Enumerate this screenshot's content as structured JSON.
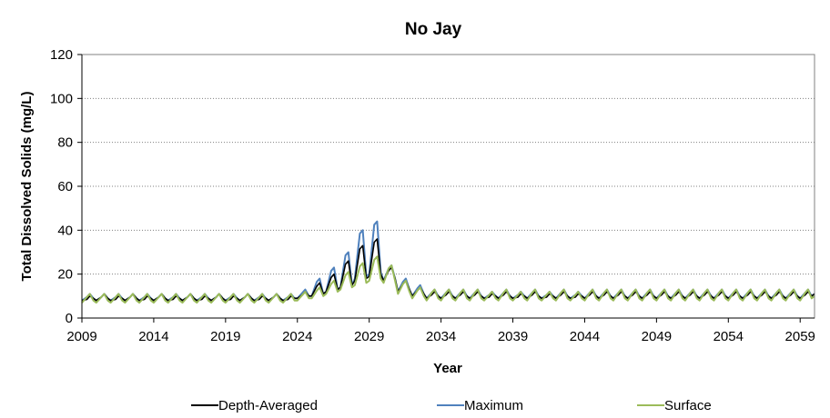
{
  "chart_data": {
    "type": "line",
    "title": "No Jay",
    "xlabel": "Year",
    "ylabel": "Total Dissolved Solids (mg/L)",
    "xlim": [
      2009,
      2060
    ],
    "ylim": [
      0,
      120
    ],
    "xticks": [
      2009,
      2014,
      2019,
      2024,
      2029,
      2034,
      2039,
      2044,
      2049,
      2054,
      2059
    ],
    "yticks": [
      0,
      20,
      40,
      60,
      80,
      100,
      120
    ],
    "grid": "horizontal dotted",
    "legend_position": "bottom",
    "annual_peaks_x": [
      2009.5,
      2010.5,
      2011.5,
      2012.5,
      2013.5,
      2014.5,
      2015.5,
      2016.5,
      2017.5,
      2018.5,
      2019.5,
      2020.5,
      2021.5,
      2022.5,
      2023.5,
      2024.5,
      2025.5,
      2026.5,
      2027.5,
      2028.5,
      2029.5,
      2030.5,
      2031.5,
      2032.5,
      2033.5,
      2034.5,
      2035.5,
      2036.5,
      2037.5,
      2038.5,
      2039.5,
      2040.5,
      2041.5,
      2042.5,
      2043.5,
      2044.5,
      2045.5,
      2046.5,
      2047.5,
      2048.5,
      2049.5,
      2050.5,
      2051.5,
      2052.5,
      2053.5,
      2054.5,
      2055.5,
      2056.5,
      2057.5,
      2058.5,
      2059.5
    ],
    "series": [
      {
        "name": "Depth-Averaged",
        "color": "#000000",
        "annual_peaks": [
          10,
          11,
          10,
          11,
          10,
          11,
          10,
          11,
          10,
          11,
          10,
          11,
          10,
          11,
          10,
          12,
          16,
          20,
          26,
          33,
          36,
          23,
          17,
          14,
          12,
          12,
          12,
          12,
          11,
          12,
          11,
          12,
          11,
          12,
          11,
          12,
          12,
          12,
          12,
          12,
          12,
          12,
          12,
          12,
          12,
          12,
          12,
          12,
          12,
          12,
          12
        ],
        "annual_lows": [
          8,
          8,
          8,
          8,
          8,
          8,
          8,
          8,
          8,
          8,
          8,
          8,
          8,
          8,
          8,
          9,
          10,
          12,
          14,
          17,
          19,
          17,
          12,
          10,
          9,
          9,
          9,
          9,
          9,
          9,
          9,
          9,
          9,
          9,
          9,
          9,
          9,
          9,
          9,
          9,
          9,
          9,
          9,
          9,
          9,
          9,
          9,
          9,
          9,
          9,
          9
        ]
      },
      {
        "name": "Maximum",
        "color": "#4f81bd",
        "annual_peaks": [
          11,
          11,
          11,
          11,
          11,
          11,
          11,
          11,
          11,
          11,
          11,
          11,
          11,
          11,
          11,
          13,
          18,
          23,
          30,
          40,
          44,
          24,
          18,
          15,
          13,
          13,
          13,
          13,
          12,
          13,
          12,
          13,
          12,
          13,
          12,
          13,
          13,
          13,
          13,
          13,
          13,
          13,
          13,
          13,
          13,
          13,
          13,
          13,
          13,
          13,
          13
        ],
        "annual_lows": [
          8,
          8,
          8,
          8,
          8,
          8,
          8,
          8,
          8,
          8,
          8,
          8,
          8,
          8,
          8,
          9,
          10,
          12,
          14,
          18,
          20,
          17,
          12,
          10,
          9,
          9,
          9,
          9,
          9,
          9,
          9,
          9,
          9,
          9,
          9,
          9,
          9,
          9,
          9,
          9,
          9,
          9,
          9,
          9,
          9,
          9,
          9,
          9,
          9,
          9,
          9
        ]
      },
      {
        "name": "Surface",
        "color": "#9bbb59",
        "annual_peaks": [
          11,
          11,
          11,
          11,
          11,
          11,
          11,
          11,
          11,
          11,
          11,
          11,
          11,
          11,
          11,
          12,
          14,
          17,
          21,
          25,
          28,
          24,
          17,
          14,
          13,
          13,
          13,
          13,
          12,
          13,
          12,
          13,
          12,
          13,
          12,
          13,
          13,
          13,
          13,
          13,
          13,
          13,
          13,
          13,
          13,
          13,
          13,
          13,
          13,
          13,
          13
        ],
        "annual_lows": [
          7,
          7,
          7,
          7,
          7,
          7,
          7,
          7,
          7,
          7,
          7,
          7,
          7,
          7,
          7,
          8,
          9,
          11,
          13,
          15,
          17,
          16,
          11,
          9,
          8,
          8,
          8,
          8,
          8,
          8,
          8,
          8,
          8,
          8,
          8,
          8,
          8,
          8,
          8,
          8,
          8,
          8,
          8,
          8,
          8,
          8,
          8,
          8,
          8,
          8,
          8
        ]
      }
    ]
  }
}
